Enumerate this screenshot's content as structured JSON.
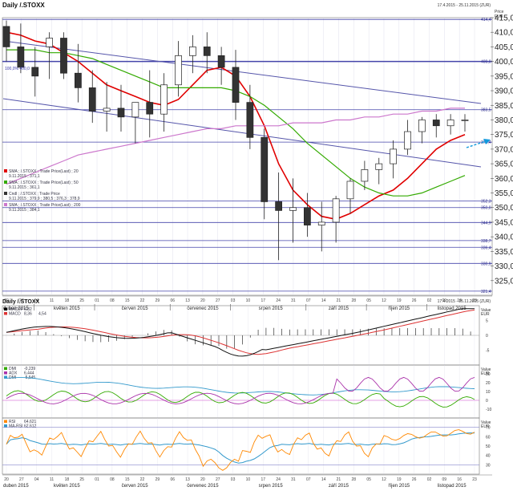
{
  "header": {
    "title": "Daily /.STOXX",
    "date_range": "17.4.2015 - 25.11.2015 (ZUR)",
    "price_label": "Price",
    "currency_label": "EUR"
  },
  "lower_header": {
    "title": "Daily /.STOXX",
    "date_range": "17.4.2015 - 25.11.2015 (ZUR)"
  },
  "chart_data": [
    {
      "type": "candlestick",
      "panel": "price",
      "x": [
        "2015-04-17",
        "2015-04-24",
        "2015-05-01",
        "2015-05-08",
        "2015-05-15",
        "2015-05-22",
        "2015-05-29",
        "2015-06-05",
        "2015-06-12",
        "2015-06-19",
        "2015-06-26",
        "2015-07-03",
        "2015-07-10",
        "2015-07-17",
        "2015-07-24",
        "2015-07-31",
        "2015-08-07",
        "2015-08-14",
        "2015-08-21",
        "2015-08-28",
        "2015-09-04",
        "2015-09-11",
        "2015-09-18",
        "2015-09-25",
        "2015-10-02",
        "2015-10-09",
        "2015-10-16",
        "2015-10-23",
        "2015-10-30",
        "2015-11-06",
        "2015-11-13",
        "2015-11-20",
        "2015-11-25"
      ],
      "open": [
        412,
        405,
        398,
        405,
        408,
        396,
        391,
        383,
        384,
        381,
        386,
        382,
        392,
        402,
        405,
        402,
        398,
        386,
        374,
        352,
        349,
        350,
        344,
        345,
        353,
        359,
        363,
        365,
        370,
        376,
        380,
        378,
        380
      ],
      "high": [
        414,
        413,
        405,
        410,
        410,
        406,
        397,
        393,
        392,
        386,
        397,
        396,
        407,
        409,
        410,
        405,
        404,
        392,
        377,
        362,
        360,
        355,
        352,
        354,
        360,
        366,
        367,
        373,
        380,
        381,
        382,
        382,
        382
      ],
      "low": [
        400,
        396,
        388,
        394,
        394,
        386,
        379,
        376,
        376,
        372,
        374,
        376,
        388,
        396,
        396,
        392,
        380,
        370,
        346,
        332,
        338,
        340,
        335,
        338,
        348,
        356,
        358,
        360,
        368,
        372,
        374,
        375,
        376
      ],
      "close": [
        405,
        398,
        395,
        408,
        396,
        391,
        383,
        384,
        381,
        386,
        382,
        392,
        402,
        405,
        402,
        398,
        386,
        374,
        352,
        349,
        350,
        344,
        345,
        353,
        359,
        363,
        365,
        370,
        376,
        380,
        378,
        380,
        380
      ],
      "ylim": [
        320,
        415
      ],
      "ylabel": "",
      "yticks": [
        325,
        330,
        335,
        340,
        345,
        350,
        355,
        360,
        365,
        370,
        375,
        380,
        385,
        390,
        395,
        400,
        405,
        410,
        415
      ],
      "horizontal_levels": [
        "414,4",
        "400,0",
        "383,5",
        "372,4",
        "352,3",
        "350,0",
        "344,9",
        "338,7",
        "336,4",
        "330,9",
        "321,4"
      ],
      "overlays": [
        {
          "name": "SMA ; /.STOXX ; Trade Price(Last) ; 20",
          "date": "9.11.2015",
          "value": "371,1",
          "color": "#e00000",
          "values": [
            410,
            409,
            407,
            406,
            403,
            400,
            396,
            392,
            390,
            388,
            386,
            385,
            387,
            392,
            397,
            398,
            395,
            388,
            378,
            365,
            356,
            351,
            347,
            346,
            348,
            351,
            354,
            356,
            360,
            365,
            370,
            373,
            375
          ]
        },
        {
          "name": "SMA ; /.STOXX ; Trade Price(Last) ; 50",
          "date": "9.11.2015",
          "value": "361,1",
          "color": "#33aa00",
          "values": [
            404,
            404,
            404,
            403,
            403,
            402,
            401,
            399,
            397,
            395,
            393,
            391,
            391,
            391,
            391,
            391,
            390,
            388,
            385,
            381,
            377,
            372,
            368,
            364,
            360,
            357,
            355,
            354,
            354,
            355,
            357,
            359,
            361
          ]
        },
        {
          "name": "SMA ; /.STOXX ; Trade Price(Last) ; 200",
          "date": "9.11.2015",
          "value": "384,1",
          "color": "#cc77cc",
          "values": [
            358,
            360,
            362,
            364,
            366,
            368,
            369,
            370,
            371,
            372,
            373,
            374,
            375,
            376,
            377,
            377,
            378,
            378,
            378,
            378,
            379,
            379,
            379,
            380,
            380,
            381,
            381,
            382,
            382,
            383,
            383,
            384,
            384
          ]
        }
      ],
      "legend": [
        {
          "label": "SMA ; /.STOXX ; Trade Price(Last) ; 20",
          "sub": "9.11.2015 ; 371,1"
        },
        {
          "label": "SMA ; /.STOXX ; Trade Price(Last) ; 50",
          "sub": "9.11.2015 ; 361,1"
        },
        {
          "label": "Cndl ; /.STOXX ; Trade Price",
          "sub": "9.11.2015 ; 379,9 ; 380,5 ; 376,3 ; 378,9"
        },
        {
          "label": "SMA ; /.STOXX ; Trade Price(Last) ; 200",
          "sub": "9.11.2015 ; 384,1"
        }
      ],
      "annotations": [
        "100,0% 400,0"
      ]
    },
    {
      "type": "line",
      "panel": "macd",
      "ylim": [
        -10,
        10
      ],
      "legend": [
        {
          "label": "MACDF",
          "value": "6,82",
          "color": "#000000"
        },
        {
          "label": "MACD",
          "value": "8,36",
          "value2": "4,54",
          "color": "#dd3333"
        }
      ],
      "yticks": [
        5,
        0,
        -5
      ]
    },
    {
      "type": "line",
      "panel": "dmi",
      "ylim": [
        -20,
        40
      ],
      "legend": [
        {
          "label": "DMI",
          "value": "-0,239",
          "color": "#33aa00"
        },
        {
          "label": "ADX",
          "value": "6,444",
          "color": "#aa33aa"
        },
        {
          "label": "DMI",
          "value": "-5,545",
          "color": "#3399cc"
        }
      ],
      "yticks": [
        30,
        20,
        10,
        0,
        -10
      ]
    },
    {
      "type": "line",
      "panel": "rsi",
      "ylim": [
        20,
        80
      ],
      "legend": [
        {
          "label": "RSI",
          "value": "64,621",
          "color": "#ff8800"
        },
        {
          "label": "MA-RSI",
          "value": "62,612",
          "color": "#3399cc"
        }
      ],
      "yticks": [
        70,
        60,
        50,
        40,
        30
      ]
    }
  ],
  "x_axis": {
    "days": [
      "20",
      "27",
      "04",
      "11",
      "18",
      "25",
      "01",
      "08",
      "15",
      "22",
      "29",
      "06",
      "13",
      "20",
      "27",
      "03",
      "10",
      "17",
      "24",
      "31",
      "07",
      "14",
      "21",
      "28",
      "05",
      "12",
      "19",
      "26",
      "02",
      "09",
      "16",
      "23"
    ],
    "months": [
      "duben 2015",
      "květen 2015",
      "červen 2015",
      "červenec 2015",
      "srpen 2015",
      "září 2015",
      "říjen 2015",
      "listopad 2015"
    ]
  },
  "panel_value_label": "Value",
  "panel_value_unit": "EUR",
  "colors": {
    "grid": "#d8d8e8",
    "levels": "#4444aa",
    "channel": "#5555aa",
    "bull": "#ffffff",
    "bear": "#333333",
    "arrow": "#1199dd"
  }
}
